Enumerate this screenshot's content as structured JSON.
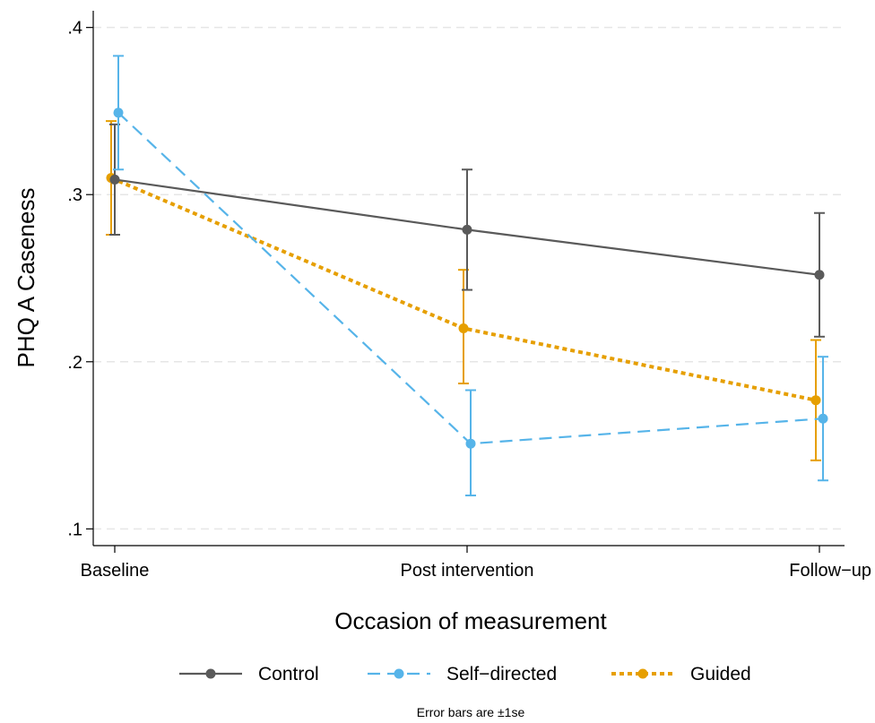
{
  "chart_data": {
    "type": "line",
    "title": "",
    "xlabel": "Occasion of measurement",
    "ylabel": "PHQ A  Caseness",
    "categories": [
      "Baseline",
      "Post intervention",
      "Follow−up"
    ],
    "ylim": [
      0.09,
      0.41
    ],
    "yticks": [
      {
        "value": 0.1,
        "label": ".1"
      },
      {
        "value": 0.2,
        "label": ".2"
      },
      {
        "value": 0.3,
        "label": ".3"
      },
      {
        "value": 0.4,
        "label": ".4"
      }
    ],
    "grid": true,
    "legend_position": "bottom",
    "note": "Error bars are ±1se",
    "series": [
      {
        "name": "Control",
        "color": "#5a5a5a",
        "line_style": "solid",
        "offset": 0,
        "values": [
          0.309,
          0.279,
          0.252
        ],
        "lower": [
          0.276,
          0.243,
          0.215
        ],
        "upper": [
          0.342,
          0.315,
          0.289
        ]
      },
      {
        "name": "Self−directed",
        "color": "#56b4e9",
        "line_style": "dashed",
        "offset": 1,
        "values": [
          0.349,
          0.151,
          0.166
        ],
        "lower": [
          0.315,
          0.12,
          0.129
        ],
        "upper": [
          0.383,
          0.183,
          0.203
        ]
      },
      {
        "name": "Guided",
        "color": "#e69f00",
        "line_style": "dotted",
        "offset": -1,
        "values": [
          0.31,
          0.22,
          0.177
        ],
        "lower": [
          0.276,
          0.187,
          0.141
        ],
        "upper": [
          0.344,
          0.255,
          0.213
        ]
      }
    ]
  }
}
